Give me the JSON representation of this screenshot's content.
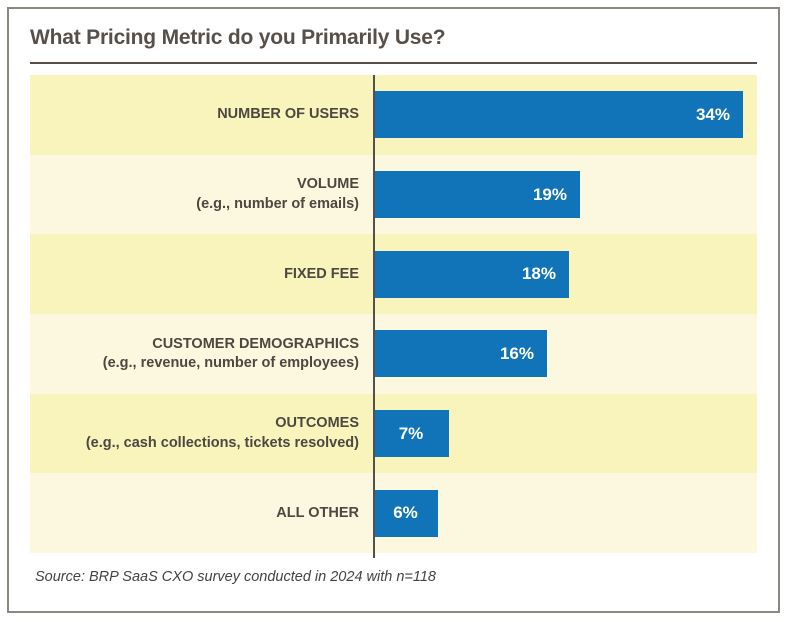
{
  "chart_data": {
    "type": "bar",
    "orientation": "horizontal",
    "title": "What Pricing Metric do you Primarily Use?",
    "categories": [
      {
        "label": "NUMBER OF USERS",
        "sublabel": ""
      },
      {
        "label": "VOLUME",
        "sublabel": "(e.g., number of emails)"
      },
      {
        "label": "FIXED FEE",
        "sublabel": ""
      },
      {
        "label": "CUSTOMER DEMOGRAPHICS",
        "sublabel": "(e.g., revenue, number of employees)"
      },
      {
        "label": "OUTCOMES",
        "sublabel": "(e.g., cash collections, tickets resolved)"
      },
      {
        "label": "ALL OTHER",
        "sublabel": ""
      }
    ],
    "values": [
      34,
      19,
      18,
      16,
      7,
      6
    ],
    "value_labels": [
      "34%",
      "19%",
      "18%",
      "16%",
      "7%",
      "6%"
    ],
    "xlim": [
      0,
      35.3
    ],
    "legend": false,
    "grid": false,
    "source": "Source: BRP SaaS CXO survey conducted in 2024 with n=118",
    "colors": {
      "bar": "#1173b8",
      "bar_label": "#ffffff",
      "band_dark": "#f8f4bc",
      "band_light": "#fbf8df",
      "category_label": "#4c4741",
      "title": "#57504a",
      "axis_line": "#55504b",
      "frame_border": "#8d8781",
      "source_text": "#46423e"
    }
  }
}
